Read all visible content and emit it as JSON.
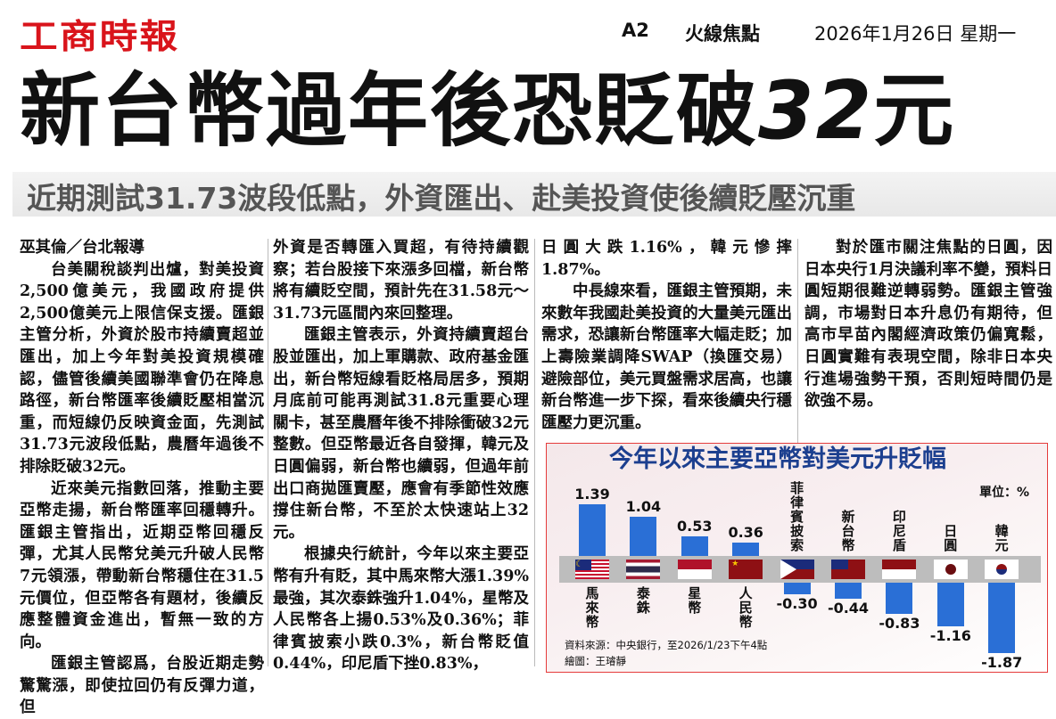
{
  "masthead": {
    "logo": "工商時報",
    "page": "A2",
    "section": "火線焦點",
    "date": "2026年1月26日 星期一"
  },
  "headline": {
    "main": "新台幣過年後恐貶破",
    "number": "32",
    "unit": "元"
  },
  "subheadline": "近期測試31.73波段低點，外資匯出、赴美投資使後續貶壓沉重",
  "columns": [
    [
      {
        "indent": false,
        "text": "巫其倫／台北報導"
      },
      {
        "indent": true,
        "text": "台美關稅談判出爐，對美投資2,500億美元，我國政府提供2,500億美元上限信保支援。匯銀主管分析，外資於股市持續賣超並匯出，加上今年對美投資規模確認，儘管後續美國聯準會仍在降息路徑，新台幣匯率後續貶壓相當沉重，而短線仍反映資金面，先測試31.73元波段低點，農曆年過後不排除貶破32元。"
      },
      {
        "indent": true,
        "text": "近來美元指數回落，推動主要亞幣走揚，新台幣匯率回穩轉升。匯銀主管指出，近期亞幣回穩反彈，尤其人民幣兌美元升破人民幣7元領漲，帶動新台幣穩住在31.5元價位，但亞幣各有題材，後續反應整體資金進出，暫無一致的方向。"
      },
      {
        "indent": true,
        "text": "匯銀主管認爲，台股近期走勢驚驚漲，即使拉回仍有反彈力道，但"
      }
    ],
    [
      {
        "indent": false,
        "text": "外資是否轉匯入買超，有待持續觀察；若台股接下來漲多回檔，新台幣將有續貶空間，預計先在31.58元～31.73元區間內來回整理。"
      },
      {
        "indent": true,
        "text": "匯銀主管表示，外資持續賣超台股並匯出，加上軍購款、政府基金匯出，新台幣短線看貶格局居多，預期月底前可能再測試31.8元重要心理關卡，甚至農曆年後不排除衝破32元整數。但亞幣最近各自發揮，韓元及日圓偏弱，新台幣也續弱，但過年前出口商拋匯賣壓，應會有季節性效應撐住新台幣，不至於太快速站上32元。"
      },
      {
        "indent": true,
        "text": "根據央行統計，今年以來主要亞幣有升有貶，其中馬來幣大漲1.39%最強，其次泰銖強升1.04%，星幣及人民幣各上揚0.53%及0.36%；菲律賓披索小跌0.3%，新台幣貶值0.44%，印尼盾下挫0.83%，"
      }
    ],
    [
      {
        "indent": false,
        "text": "日圓大跌1.16%，韓元慘摔1.87%。"
      },
      {
        "indent": true,
        "text": "中長線來看，匯銀主管預期，未來數年我國赴美投資的大量美元匯出需求，恐讓新台幣匯率大幅走貶；加上壽險業調降SWAP（換匯交易）避險部位，美元買盤需求居高，也讓新台幣進一步下探，看來後續央行穩匯壓力更沉重。"
      }
    ],
    [
      {
        "indent": true,
        "text": "對於匯市關注焦點的日圓，因日本央行1月決議利率不變，預料日圓短期很難逆轉弱勢。匯銀主管強調，市場對日本升息仍有期待，但高市早苗內閣經濟政策仍偏寬鬆，日圓實難有表現空間，除非日本央行進場強勢干預，否則短時間仍是欲強不易。"
      }
    ]
  ],
  "chart_data": {
    "type": "bar",
    "title": "今年以來主要亞幣對美元升貶幅",
    "unit_label": "單位：%",
    "categories": [
      "馬來幣",
      "泰銖",
      "星幣",
      "人民幣",
      "菲律賓披索",
      "新台幣",
      "印尼盾",
      "日圓",
      "韓元"
    ],
    "value_labels": [
      "1.39",
      "1.04",
      "0.53",
      "0.36",
      "-0.30",
      "-0.44",
      "-0.83",
      "-1.16",
      "-1.87"
    ],
    "values": [
      1.39,
      1.04,
      0.53,
      0.36,
      -0.3,
      -0.44,
      -0.83,
      -1.16,
      -1.87
    ],
    "flags": [
      "malaysia-flag",
      "thailand-flag",
      "singapore-flag",
      "china-flag",
      "philippines-flag",
      "taiwan-flag",
      "indonesia-flag",
      "japan-flag",
      "korea-flag"
    ],
    "bar_color": "#2a6fd6",
    "source": "資料來源：中央銀行，至2026/1/23下午4點",
    "credit": "繪圖：王璿靜"
  },
  "colors": {
    "logo": "#d9141b",
    "chart_title": "#1c3f8f",
    "chart_border": "#e53b3b"
  }
}
